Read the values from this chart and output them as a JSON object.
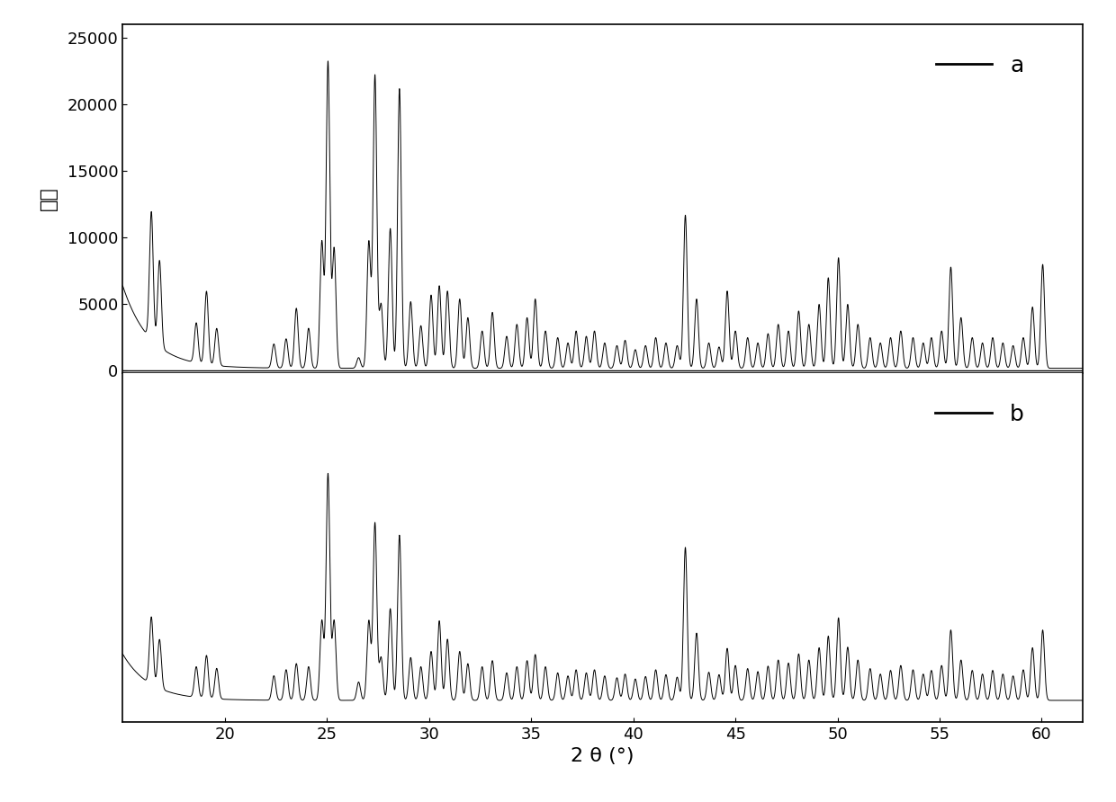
{
  "xlabel": "2 θ (°)",
  "ylabel": "强度",
  "xlim": [
    15,
    62
  ],
  "ylim_a": [
    -200,
    26000
  ],
  "ylim_b": [
    -200,
    5500
  ],
  "label_a": "a",
  "label_b": "b",
  "background_color": "#ffffff",
  "line_color": "#000000",
  "xlabel_fontsize": 16,
  "ylabel_fontsize": 16,
  "tick_fontsize": 13,
  "legend_fontsize": 18,
  "peaks_a": [
    [
      16.4,
      9600
    ],
    [
      16.8,
      6500
    ],
    [
      18.6,
      3000
    ],
    [
      19.1,
      5500
    ],
    [
      19.6,
      2800
    ],
    [
      22.4,
      1800
    ],
    [
      23.0,
      2200
    ],
    [
      23.5,
      4500
    ],
    [
      24.1,
      3000
    ],
    [
      24.75,
      9500
    ],
    [
      25.05,
      23000
    ],
    [
      25.35,
      9000
    ],
    [
      26.55,
      800
    ],
    [
      27.05,
      9500
    ],
    [
      27.35,
      22000
    ],
    [
      27.65,
      4800
    ],
    [
      28.1,
      10500
    ],
    [
      28.55,
      21000
    ],
    [
      29.1,
      5000
    ],
    [
      29.6,
      3200
    ],
    [
      30.1,
      5500
    ],
    [
      30.5,
      6200
    ],
    [
      30.9,
      5800
    ],
    [
      31.5,
      5200
    ],
    [
      31.9,
      3800
    ],
    [
      32.6,
      2800
    ],
    [
      33.1,
      4200
    ],
    [
      33.8,
      2400
    ],
    [
      34.3,
      3300
    ],
    [
      34.8,
      3800
    ],
    [
      35.2,
      5200
    ],
    [
      35.7,
      2800
    ],
    [
      36.3,
      2300
    ],
    [
      36.8,
      1900
    ],
    [
      37.2,
      2800
    ],
    [
      37.7,
      2400
    ],
    [
      38.1,
      2800
    ],
    [
      38.6,
      1900
    ],
    [
      39.2,
      1700
    ],
    [
      39.6,
      2100
    ],
    [
      40.1,
      1400
    ],
    [
      40.6,
      1700
    ],
    [
      41.1,
      2300
    ],
    [
      41.6,
      1900
    ],
    [
      42.15,
      1700
    ],
    [
      42.55,
      11500
    ],
    [
      43.1,
      5200
    ],
    [
      43.7,
      1900
    ],
    [
      44.2,
      1600
    ],
    [
      44.6,
      5800
    ],
    [
      45.0,
      2800
    ],
    [
      45.6,
      2300
    ],
    [
      46.1,
      1900
    ],
    [
      46.6,
      2600
    ],
    [
      47.1,
      3300
    ],
    [
      47.6,
      2800
    ],
    [
      48.1,
      4300
    ],
    [
      48.6,
      3300
    ],
    [
      49.1,
      4800
    ],
    [
      49.55,
      6800
    ],
    [
      50.05,
      8300
    ],
    [
      50.5,
      4800
    ],
    [
      51.0,
      3300
    ],
    [
      51.6,
      2300
    ],
    [
      52.1,
      1900
    ],
    [
      52.6,
      2300
    ],
    [
      53.1,
      2800
    ],
    [
      53.7,
      2300
    ],
    [
      54.2,
      1900
    ],
    [
      54.6,
      2300
    ],
    [
      55.1,
      2800
    ],
    [
      55.55,
      7600
    ],
    [
      56.05,
      3800
    ],
    [
      56.6,
      2300
    ],
    [
      57.1,
      1900
    ],
    [
      57.6,
      2300
    ],
    [
      58.1,
      1900
    ],
    [
      58.6,
      1700
    ],
    [
      59.1,
      2300
    ],
    [
      59.55,
      4600
    ],
    [
      60.05,
      7800
    ]
  ],
  "peaks_b": [
    [
      16.4,
      1100
    ],
    [
      16.8,
      800
    ],
    [
      18.6,
      500
    ],
    [
      19.1,
      700
    ],
    [
      19.6,
      500
    ],
    [
      22.4,
      400
    ],
    [
      23.0,
      500
    ],
    [
      23.5,
      600
    ],
    [
      24.1,
      550
    ],
    [
      24.75,
      1300
    ],
    [
      25.05,
      3700
    ],
    [
      25.35,
      1300
    ],
    [
      26.55,
      300
    ],
    [
      27.05,
      1300
    ],
    [
      27.35,
      2900
    ],
    [
      27.65,
      700
    ],
    [
      28.1,
      1500
    ],
    [
      28.55,
      2700
    ],
    [
      29.1,
      700
    ],
    [
      29.6,
      550
    ],
    [
      30.1,
      800
    ],
    [
      30.5,
      1300
    ],
    [
      30.9,
      1000
    ],
    [
      31.5,
      800
    ],
    [
      31.9,
      600
    ],
    [
      32.6,
      550
    ],
    [
      33.1,
      650
    ],
    [
      33.8,
      450
    ],
    [
      34.3,
      550
    ],
    [
      34.8,
      650
    ],
    [
      35.2,
      750
    ],
    [
      35.7,
      550
    ],
    [
      36.3,
      450
    ],
    [
      36.8,
      400
    ],
    [
      37.2,
      500
    ],
    [
      37.7,
      450
    ],
    [
      38.1,
      500
    ],
    [
      38.6,
      400
    ],
    [
      39.2,
      370
    ],
    [
      39.6,
      430
    ],
    [
      40.1,
      350
    ],
    [
      40.6,
      390
    ],
    [
      41.1,
      500
    ],
    [
      41.6,
      420
    ],
    [
      42.15,
      380
    ],
    [
      42.55,
      2500
    ],
    [
      43.1,
      1100
    ],
    [
      43.7,
      460
    ],
    [
      44.2,
      420
    ],
    [
      44.6,
      850
    ],
    [
      45.0,
      570
    ],
    [
      45.6,
      520
    ],
    [
      46.1,
      470
    ],
    [
      46.6,
      560
    ],
    [
      47.1,
      660
    ],
    [
      47.6,
      610
    ],
    [
      48.1,
      760
    ],
    [
      48.6,
      660
    ],
    [
      49.1,
      860
    ],
    [
      49.55,
      1050
    ],
    [
      50.05,
      1350
    ],
    [
      50.5,
      870
    ],
    [
      51.0,
      660
    ],
    [
      51.6,
      520
    ],
    [
      52.1,
      430
    ],
    [
      52.6,
      490
    ],
    [
      53.1,
      570
    ],
    [
      53.7,
      500
    ],
    [
      54.2,
      430
    ],
    [
      54.6,
      490
    ],
    [
      55.1,
      570
    ],
    [
      55.55,
      1150
    ],
    [
      56.05,
      660
    ],
    [
      56.6,
      490
    ],
    [
      57.1,
      430
    ],
    [
      57.6,
      490
    ],
    [
      58.1,
      430
    ],
    [
      58.6,
      400
    ],
    [
      59.1,
      500
    ],
    [
      59.55,
      860
    ],
    [
      60.05,
      1150
    ]
  ],
  "yticks_a": [
    0,
    5000,
    10000,
    15000,
    20000,
    25000
  ],
  "xticks": [
    20,
    25,
    30,
    35,
    40,
    45,
    50,
    55,
    60
  ]
}
